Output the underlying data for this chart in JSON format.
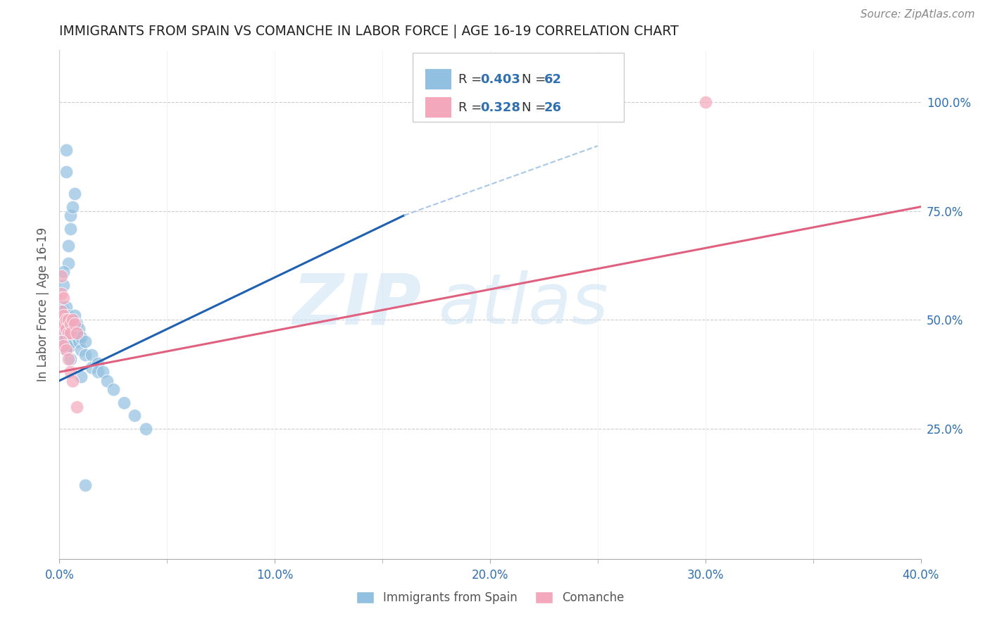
{
  "title": "IMMIGRANTS FROM SPAIN VS COMANCHE IN LABOR FORCE | AGE 16-19 CORRELATION CHART",
  "source": "Source: ZipAtlas.com",
  "ylabel": "In Labor Force | Age 16-19",
  "ytick_labels": [
    "25.0%",
    "50.0%",
    "75.0%",
    "100.0%"
  ],
  "ytick_values": [
    0.25,
    0.5,
    0.75,
    1.0
  ],
  "blue_color": "#92c0e0",
  "pink_color": "#f4a8bc",
  "trend_blue": "#2060b0",
  "trend_pink": "#e06080",
  "trend_dashed_color": "#a8c8e8",
  "blue_scatter": [
    [
      0.0005,
      0.475
    ],
    [
      0.0008,
      0.5
    ],
    [
      0.001,
      0.53
    ],
    [
      0.001,
      0.5
    ],
    [
      0.001,
      0.48
    ],
    [
      0.001,
      0.46
    ],
    [
      0.0015,
      0.52
    ],
    [
      0.0015,
      0.5
    ],
    [
      0.0015,
      0.48
    ],
    [
      0.002,
      0.52
    ],
    [
      0.002,
      0.5
    ],
    [
      0.002,
      0.48
    ],
    [
      0.002,
      0.46
    ],
    [
      0.002,
      0.44
    ],
    [
      0.003,
      0.53
    ],
    [
      0.003,
      0.51
    ],
    [
      0.003,
      0.48
    ],
    [
      0.003,
      0.46
    ],
    [
      0.003,
      0.43
    ],
    [
      0.004,
      0.51
    ],
    [
      0.004,
      0.49
    ],
    [
      0.004,
      0.47
    ],
    [
      0.004,
      0.44
    ],
    [
      0.005,
      0.5
    ],
    [
      0.005,
      0.47
    ],
    [
      0.005,
      0.44
    ],
    [
      0.005,
      0.41
    ],
    [
      0.006,
      0.5
    ],
    [
      0.006,
      0.47
    ],
    [
      0.006,
      0.45
    ],
    [
      0.007,
      0.51
    ],
    [
      0.007,
      0.48
    ],
    [
      0.008,
      0.49
    ],
    [
      0.008,
      0.46
    ],
    [
      0.009,
      0.48
    ],
    [
      0.009,
      0.45
    ],
    [
      0.01,
      0.46
    ],
    [
      0.01,
      0.43
    ],
    [
      0.012,
      0.45
    ],
    [
      0.012,
      0.42
    ],
    [
      0.015,
      0.42
    ],
    [
      0.015,
      0.39
    ],
    [
      0.018,
      0.4
    ],
    [
      0.018,
      0.38
    ],
    [
      0.02,
      0.38
    ],
    [
      0.022,
      0.36
    ],
    [
      0.025,
      0.34
    ],
    [
      0.03,
      0.31
    ],
    [
      0.035,
      0.28
    ],
    [
      0.04,
      0.25
    ],
    [
      0.004,
      0.63
    ],
    [
      0.004,
      0.67
    ],
    [
      0.005,
      0.71
    ],
    [
      0.005,
      0.74
    ],
    [
      0.006,
      0.76
    ],
    [
      0.007,
      0.79
    ],
    [
      0.003,
      0.84
    ],
    [
      0.003,
      0.89
    ],
    [
      0.002,
      0.58
    ],
    [
      0.002,
      0.61
    ],
    [
      0.01,
      0.37
    ],
    [
      0.012,
      0.12
    ]
  ],
  "pink_scatter": [
    [
      0.0005,
      0.5
    ],
    [
      0.001,
      0.52
    ],
    [
      0.001,
      0.5
    ],
    [
      0.001,
      0.48
    ],
    [
      0.002,
      0.51
    ],
    [
      0.002,
      0.49
    ],
    [
      0.003,
      0.5
    ],
    [
      0.003,
      0.48
    ],
    [
      0.004,
      0.5
    ],
    [
      0.004,
      0.47
    ],
    [
      0.005,
      0.49
    ],
    [
      0.005,
      0.47
    ],
    [
      0.006,
      0.5
    ],
    [
      0.007,
      0.49
    ],
    [
      0.008,
      0.47
    ],
    [
      0.001,
      0.56
    ],
    [
      0.001,
      0.6
    ],
    [
      0.002,
      0.55
    ],
    [
      0.001,
      0.45
    ],
    [
      0.002,
      0.44
    ],
    [
      0.003,
      0.43
    ],
    [
      0.004,
      0.41
    ],
    [
      0.005,
      0.38
    ],
    [
      0.006,
      0.36
    ],
    [
      0.008,
      0.3
    ],
    [
      0.3,
      1.0
    ]
  ],
  "xlim": [
    0.0,
    0.4
  ],
  "ylim": [
    -0.05,
    1.12
  ],
  "blue_trend_x": [
    0.0,
    0.16
  ],
  "blue_trend_y": [
    0.36,
    0.74
  ],
  "pink_trend_x": [
    0.0,
    0.4
  ],
  "pink_trend_y": [
    0.38,
    0.76
  ],
  "dashed_trend_x": [
    0.16,
    0.25
  ],
  "dashed_trend_y": [
    0.74,
    0.9
  ],
  "blue_r": "0.403",
  "blue_n": "62",
  "pink_r": "0.328",
  "pink_n": "26"
}
